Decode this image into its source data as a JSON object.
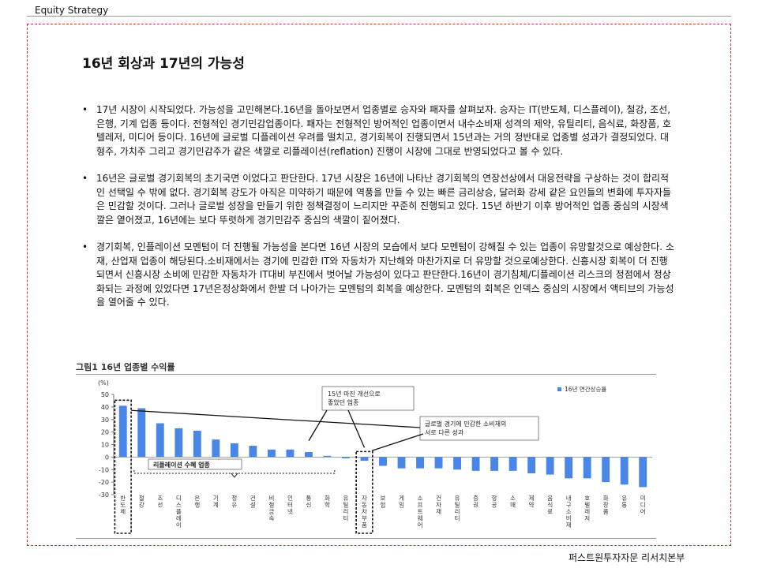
{
  "header": {
    "section": "Equity Strategy"
  },
  "page_title": "16년 회상과 17년의 가능성",
  "bullets": [
    "17년 시장이 시작되었다. 가능성을 고민해본다.16년을 돌아보면서 업종별로 승자와 패자를 살펴보자. 승자는 IT(반도체, 디스플레이), 철강, 조선, 은행, 기계 업종 등이다. 전형적인 경기민감업종이다. 패자는 전형적인 방어적인 업종이면서 내수소비재 성격의 제약, 유틸리티, 음식료, 화장품, 호텔레저, 미디어 등이다. 16년에 글로벌 디플레이션 우려를 떨치고, 경기회복이 진행되면서 15년과는 거의 정반대로 업종별 성과가 결정되었다. 대형주, 가치주 그리고 경기민감주가 같은 색깔로 리플레이션(reflation) 진행이 시장에 그대로 반영되었다고 볼 수 있다.",
    "16년은 글로벌 경기회복의 초기국면 이었다고 판단한다. 17년 시장은 16년에 나타난 경기회복의 연장선상에서 대응전략을 구상하는 것이 합리적인 선택일 수 밖에 없다. 경기회복 강도가 아직은 미약하기 때문에 역풍을 만들 수 있는 빠른 금리상승, 달러화 강세 같은 요인들의 변화에 투자자들은 민감할 것이다. 그러나 글로벌 성장을 만들기 위한 정책결정이 느리지만 꾸준히 진행되고 있다. 15년 하반기 이후 방어적인 업종 중심의 시장색깔은 옅어졌고, 16년에는 보다 뚜렷하게 경기민감주 중심의 색깔이 짙어졌다.",
    "경기회복, 인플레이션 모멘텀이 더 진행될 가능성을 본다면 16년 시장의 모습에서 보다 모멘텀이 강해질 수 있는 업종이 유망할것으로 예상한다. 소재, 산업재 업종이 해당된다.소비재에서는 경기에 민감한 IT와 자동차가 지난해와 마찬가지로 더 유망할 것으로예상한다. 신흥시장 회복이 더 진행되면서 신흥시장 소비에 민감한 자동차가 IT대비 부진에서 벗어날 가능성이 있다고 판단한다.16년이 경기침체/디플레이션 리스크의 정점에서 정상화되는 과정에 있었다면 17년은정상화에서 한발 더 나아가는 모멘텀의 회복을 예상한다. 모멘텀의 회복은 인덱스 중심의 시장에서 액티브의 가능성을 열어줄 수 있다."
  ],
  "chart_caption": "그림1 16년 업종별 수익률",
  "footer": {
    "source": "퍼스트원투자자문 리서치본부"
  },
  "chart_data": {
    "type": "bar",
    "unit": "(%)",
    "categories": [
      "반도체",
      "철강",
      "조선",
      "디스플레이",
      "은행",
      "기계",
      "정유",
      "건설",
      "비철금속",
      "인터넷",
      "통신",
      "화학",
      "유틸리티",
      "자동차부품",
      "보험",
      "게임",
      "소프트웨어",
      "건자재",
      "유틸리티",
      "증권",
      "항공",
      "소매",
      "제약",
      "음식료",
      "내구소비재",
      "호텔레저",
      "화장품",
      "유통",
      "미디어"
    ],
    "series": [
      {
        "name": "16년 연간상승률",
        "values": [
          41,
          39,
          27,
          23,
          21,
          14,
          11,
          9,
          6,
          6,
          4,
          1,
          -1,
          -3,
          -7,
          -9,
          -9,
          -9,
          -10,
          -11,
          -11,
          -11,
          -13,
          -14,
          -17,
          -17,
          -20,
          -22,
          -24
        ]
      }
    ],
    "ylim": [
      -30,
      50
    ],
    "yticks": [
      50,
      40,
      30,
      20,
      10,
      0,
      -10,
      -20,
      -30
    ],
    "legend": "top-right",
    "bar_color": "#4a86e8",
    "annotations": {
      "margin_improvement": "15년 마진 개선으로\n좋았던 업종",
      "consumer_split": "글로벌 경기에 민감한 소비재의\n서로 다른 성과",
      "reflation_group": "리플레이션 수혜 업종"
    }
  }
}
